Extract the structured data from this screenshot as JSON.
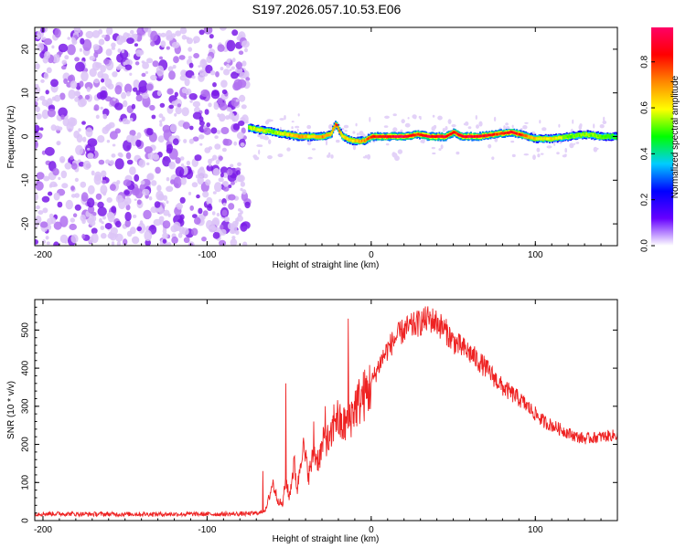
{
  "title": "S197.2026.057.10.53.E06",
  "chart_data": [
    {
      "type": "heatmap",
      "xlabel": "Height of straight line (km)",
      "ylabel": "Frequency (Hz)",
      "xlim": [
        -205,
        150
      ],
      "ylim": [
        -25,
        25
      ],
      "xticks": [
        -200,
        -100,
        0,
        100
      ],
      "xtick_labels": [
        "-200",
        "-100",
        "0",
        "100"
      ],
      "yticks": [
        -20,
        -10,
        0,
        10,
        20
      ],
      "ytick_labels": [
        "-20",
        "-10",
        "0",
        "10",
        "20"
      ],
      "noise_region_x": [
        -205,
        -75
      ],
      "signal_region_x": [
        -75,
        150
      ],
      "ridge": {
        "x": [
          -75,
          -68,
          -60,
          -52,
          -45,
          -38,
          -30,
          -25,
          -22,
          -18,
          -12,
          -5,
          0,
          10,
          20,
          28,
          35,
          45,
          50,
          55,
          65,
          75,
          85,
          90,
          95,
          100,
          110,
          120,
          130,
          140,
          150
        ],
        "freq": [
          2,
          1.5,
          1,
          0.5,
          0,
          0,
          0,
          0.5,
          3,
          0,
          -1,
          -1,
          0,
          0,
          0,
          0.5,
          0,
          0,
          1,
          0,
          0,
          0.5,
          1,
          0.5,
          0,
          -0.5,
          -0.5,
          0,
          0.5,
          0,
          0
        ],
        "peak_amplitude": [
          0.6,
          0.7,
          0.6,
          0.7,
          0.8,
          0.7,
          0.8,
          0.7,
          0.9,
          0.7,
          0.7,
          0.8,
          0.9,
          1.0,
          1.0,
          0.9,
          1.0,
          1.0,
          0.9,
          1.0,
          1.0,
          0.9,
          1.0,
          0.9,
          0.8,
          0.7,
          0.7,
          0.6,
          0.6,
          0.6,
          0.5
        ]
      },
      "colorbar": {
        "label": "Normalized spectral amplitude",
        "range": [
          0,
          0.95
        ],
        "ticks": [
          0.0,
          0.2,
          0.4,
          0.6,
          0.8
        ],
        "tick_labels": [
          "0.0",
          "0.2",
          "0.4",
          "0.6",
          "0.8"
        ],
        "colormap": [
          "#ffffff",
          "#6600ff",
          "#0000ff",
          "#00ccff",
          "#00ff00",
          "#ffff00",
          "#ff8800",
          "#ff0000",
          "#ff0066"
        ]
      }
    },
    {
      "type": "line",
      "xlabel": "Height of straight line (km)",
      "ylabel": "SNR (10 * v/v)",
      "xlim": [
        -205,
        150
      ],
      "ylim": [
        0,
        580
      ],
      "xticks": [
        -200,
        -100,
        0,
        100
      ],
      "xtick_labels": [
        "-200",
        "-100",
        "0",
        "100"
      ],
      "yticks": [
        0,
        100,
        200,
        300,
        400,
        500
      ],
      "ytick_labels": [
        "0",
        "100",
        "200",
        "300",
        "400",
        "500"
      ],
      "color": "#ee2222",
      "series": [
        {
          "name": "SNR",
          "x": [
            -205,
            -190,
            -170,
            -150,
            -130,
            -110,
            -90,
            -75,
            -68,
            -64,
            -60,
            -57,
            -54,
            -52,
            -50,
            -47,
            -45,
            -42,
            -38,
            -35,
            -32,
            -28,
            -25,
            -22,
            -18,
            -14,
            -10,
            -6,
            -2,
            2,
            6,
            10,
            15,
            20,
            25,
            30,
            35,
            40,
            45,
            50,
            60,
            70,
            80,
            90,
            100,
            105,
            110,
            115,
            120,
            125,
            130,
            140,
            150
          ],
          "y": [
            18,
            18,
            17,
            17,
            17,
            17,
            17,
            18,
            20,
            30,
            100,
            55,
            40,
            110,
            60,
            150,
            80,
            200,
            120,
            175,
            160,
            220,
            200,
            280,
            245,
            260,
            300,
            320,
            340,
            380,
            420,
            450,
            480,
            500,
            510,
            520,
            530,
            520,
            500,
            470,
            440,
            400,
            350,
            320,
            280,
            260,
            250,
            240,
            230,
            220,
            215,
            220,
            225
          ]
        }
      ],
      "spikes": [
        {
          "x": -66,
          "y": 130
        },
        {
          "x": -52,
          "y": 360
        },
        {
          "x": -35,
          "y": 260
        },
        {
          "x": -28,
          "y": 300
        },
        {
          "x": -14,
          "y": 530
        }
      ]
    }
  ]
}
